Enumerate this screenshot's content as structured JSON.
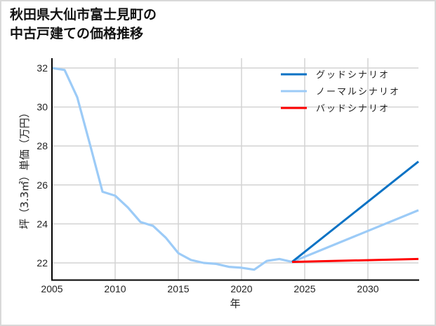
{
  "title": {
    "line1": "秋田県大仙市富士見町の",
    "line2": "中古戸建ての価格推移"
  },
  "axes": {
    "xlabel": "年",
    "ylabel": "坪（3.3㎡）単価（万円）",
    "xticks": [
      "2005",
      "2010",
      "2015",
      "2020",
      "2025",
      "2030"
    ],
    "yticks": [
      "22",
      "24",
      "26",
      "28",
      "30",
      "32"
    ]
  },
  "legend": {
    "items": [
      {
        "label": "グッドシナリオ",
        "color": "#0a72c4"
      },
      {
        "label": "ノーマルシナリオ",
        "color": "#9ccbf7"
      },
      {
        "label": "バッドシナリオ",
        "color": "#ff0000"
      }
    ]
  },
  "chart_data": {
    "type": "line",
    "title": "秋田県大仙市富士見町の中古戸建ての価格推移",
    "xlabel": "年",
    "ylabel": "坪（3.3㎡）単価（万円）",
    "xlim": [
      2005,
      2034
    ],
    "ylim": [
      21.1,
      32.5
    ],
    "grid": true,
    "legend_position": "upper right",
    "series": [
      {
        "name": "ノーマルシナリオ",
        "color": "#9ccbf7",
        "x": [
          2005,
          2006,
          2007,
          2008,
          2009,
          2010,
          2011,
          2012,
          2013,
          2014,
          2015,
          2016,
          2017,
          2018,
          2019,
          2020,
          2021,
          2022,
          2023,
          2024,
          2034
        ],
        "values": [
          32.0,
          31.9,
          30.5,
          28.1,
          25.65,
          25.45,
          24.85,
          24.1,
          23.9,
          23.3,
          22.5,
          22.15,
          22.0,
          21.95,
          21.8,
          21.75,
          21.65,
          22.1,
          22.2,
          22.05,
          24.7
        ]
      },
      {
        "name": "グッドシナリオ",
        "color": "#0a72c4",
        "x": [
          2024,
          2034
        ],
        "values": [
          22.05,
          27.2
        ]
      },
      {
        "name": "バッドシナリオ",
        "color": "#ff0000",
        "x": [
          2024,
          2034
        ],
        "values": [
          22.05,
          22.2
        ]
      }
    ]
  }
}
